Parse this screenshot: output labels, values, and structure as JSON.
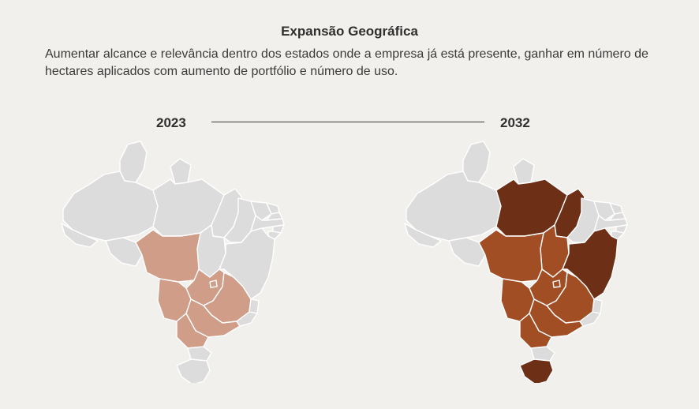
{
  "header": {
    "title": "Expansão Geográfica",
    "description": "Aumentar alcance e relevância dentro dos estados onde a empresa já está presente, ganhar em número de hectares aplicados com aumento de portfólio e número de uso."
  },
  "timeline": {
    "start_year": "2023",
    "end_year": "2032"
  },
  "colors": {
    "background": "#f2f0ec",
    "inactive_state": "#dcdcdc",
    "state_border": "#ffffff",
    "present_2023": "#d09d88",
    "present_2032": "#a24e25",
    "expansion_2032": "#6d3016"
  },
  "maps": {
    "map_2023": {
      "highlighted_states": [
        "MT",
        "MS",
        "GO",
        "DF",
        "MG",
        "SP",
        "PR"
      ]
    },
    "map_2032": {
      "present_states": [
        "MT",
        "MS",
        "GO",
        "DF",
        "MG",
        "SP",
        "PR",
        "TO"
      ],
      "expansion_states": [
        "PA",
        "MA",
        "BA",
        "RS"
      ]
    }
  }
}
